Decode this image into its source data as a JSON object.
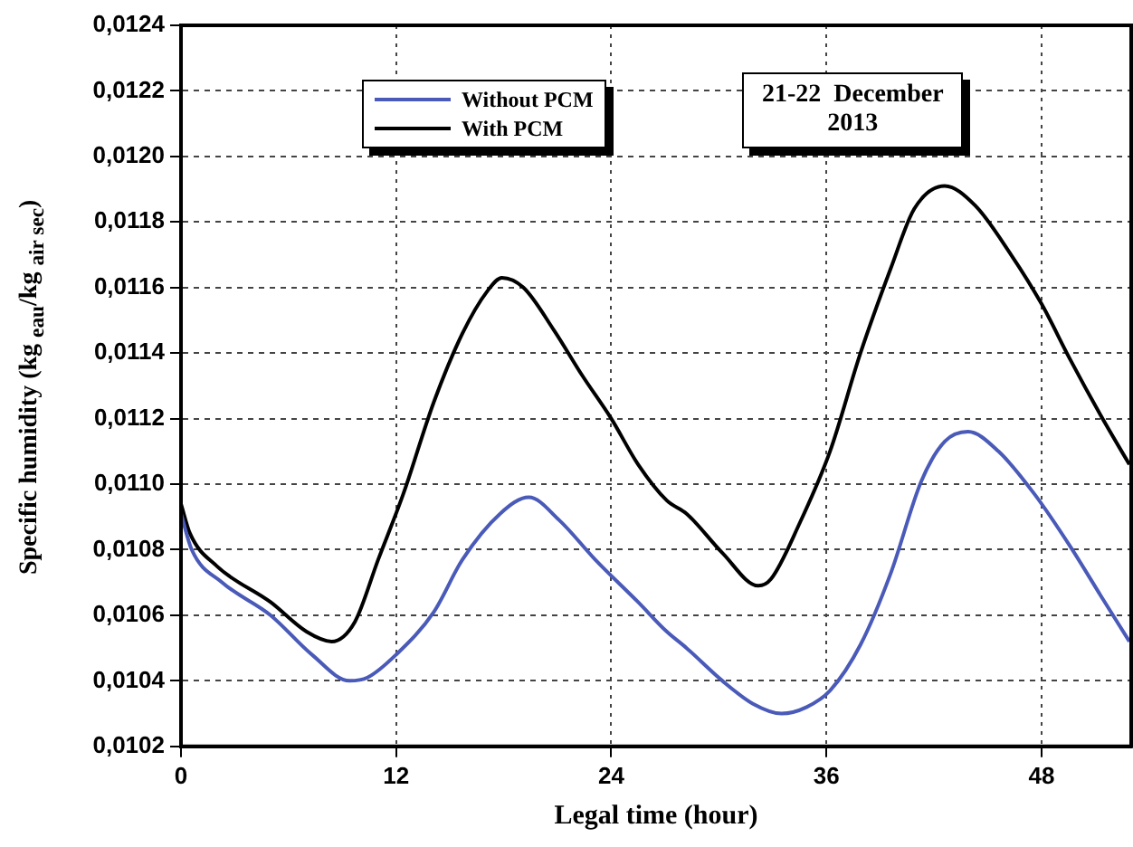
{
  "chart_data": {
    "type": "line",
    "xlabel": "Legal time (hour)",
    "ylabel": "Specific humidity (kg $_{eau}$/kg $_{air sec}$)",
    "annotations": [
      "21-22  December\n2013"
    ],
    "xlim": [
      0,
      53
    ],
    "xticks": [
      0,
      12,
      24,
      36,
      48
    ],
    "ylim": [
      0.0102,
      0.0124
    ],
    "yticks": [
      {
        "value": 0.0102,
        "label": "0,0102"
      },
      {
        "value": 0.0104,
        "label": "0,0104"
      },
      {
        "value": 0.0106,
        "label": "0,0106"
      },
      {
        "value": 0.0108,
        "label": "0,0108"
      },
      {
        "value": 0.011,
        "label": "0,0110"
      },
      {
        "value": 0.0112,
        "label": "0,0112"
      },
      {
        "value": 0.0114,
        "label": "0,0114"
      },
      {
        "value": 0.0116,
        "label": "0,0116"
      },
      {
        "value": 0.0118,
        "label": "0,0118"
      },
      {
        "value": 0.012,
        "label": "0,0120"
      },
      {
        "value": 0.0122,
        "label": "0,0122"
      },
      {
        "value": 0.0124,
        "label": "0,0124"
      }
    ],
    "grid": true,
    "legend": "top left",
    "marker": "none",
    "line_style": "solid",
    "series": [
      {
        "name": "Without PCM",
        "color": "#4a5ab8",
        "x": [
          0,
          0.6,
          2.3,
          5,
          7.3,
          9.4,
          10.4,
          12,
          14.1,
          15.7,
          17.8,
          19.4,
          21.1,
          23.1,
          25.5,
          27.1,
          28.2,
          30.2,
          31.9,
          33.5,
          34.9,
          36.2,
          37.9,
          39.6,
          41.3,
          42.6,
          43.9,
          45.6,
          47.6,
          49.6,
          51.3,
          52.9
        ],
        "values": [
          0.01091,
          0.0108,
          0.0107,
          0.0106,
          0.01048,
          0.0104,
          0.01041,
          0.01048,
          0.01061,
          0.01077,
          0.01091,
          0.01096,
          0.01089,
          0.01077,
          0.01064,
          0.01055,
          0.0105,
          0.0104,
          0.01033,
          0.0103,
          0.01032,
          0.01037,
          0.01051,
          0.01073,
          0.01101,
          0.01113,
          0.01116,
          0.0111,
          0.01097,
          0.01081,
          0.01066,
          0.01052
        ]
      },
      {
        "name": "With PCM",
        "color": "#000000",
        "x": [
          0,
          0.5,
          2,
          5,
          7,
          8.4,
          9.7,
          11,
          12.4,
          14.1,
          15.7,
          17.1,
          17.9,
          19.1,
          20.8,
          22.4,
          24,
          25.5,
          27.1,
          28.2,
          30.2,
          32.2,
          32.9,
          34.5,
          36.2,
          37.9,
          39.6,
          40.9,
          42.6,
          44.3,
          46.3,
          48,
          49.6,
          51.3,
          52.9
        ],
        "values": [
          0.01094,
          0.01085,
          0.01075,
          0.01064,
          0.01055,
          0.01052,
          0.01058,
          0.01077,
          0.01097,
          0.01125,
          0.01146,
          0.01159,
          0.01163,
          0.0116,
          0.01147,
          0.01133,
          0.0112,
          0.01106,
          0.01095,
          0.01091,
          0.01079,
          0.01069,
          0.01071,
          0.01088,
          0.0111,
          0.0114,
          0.01166,
          0.01184,
          0.01191,
          0.01185,
          0.0117,
          0.01155,
          0.01138,
          0.01121,
          0.01106
        ]
      }
    ]
  }
}
